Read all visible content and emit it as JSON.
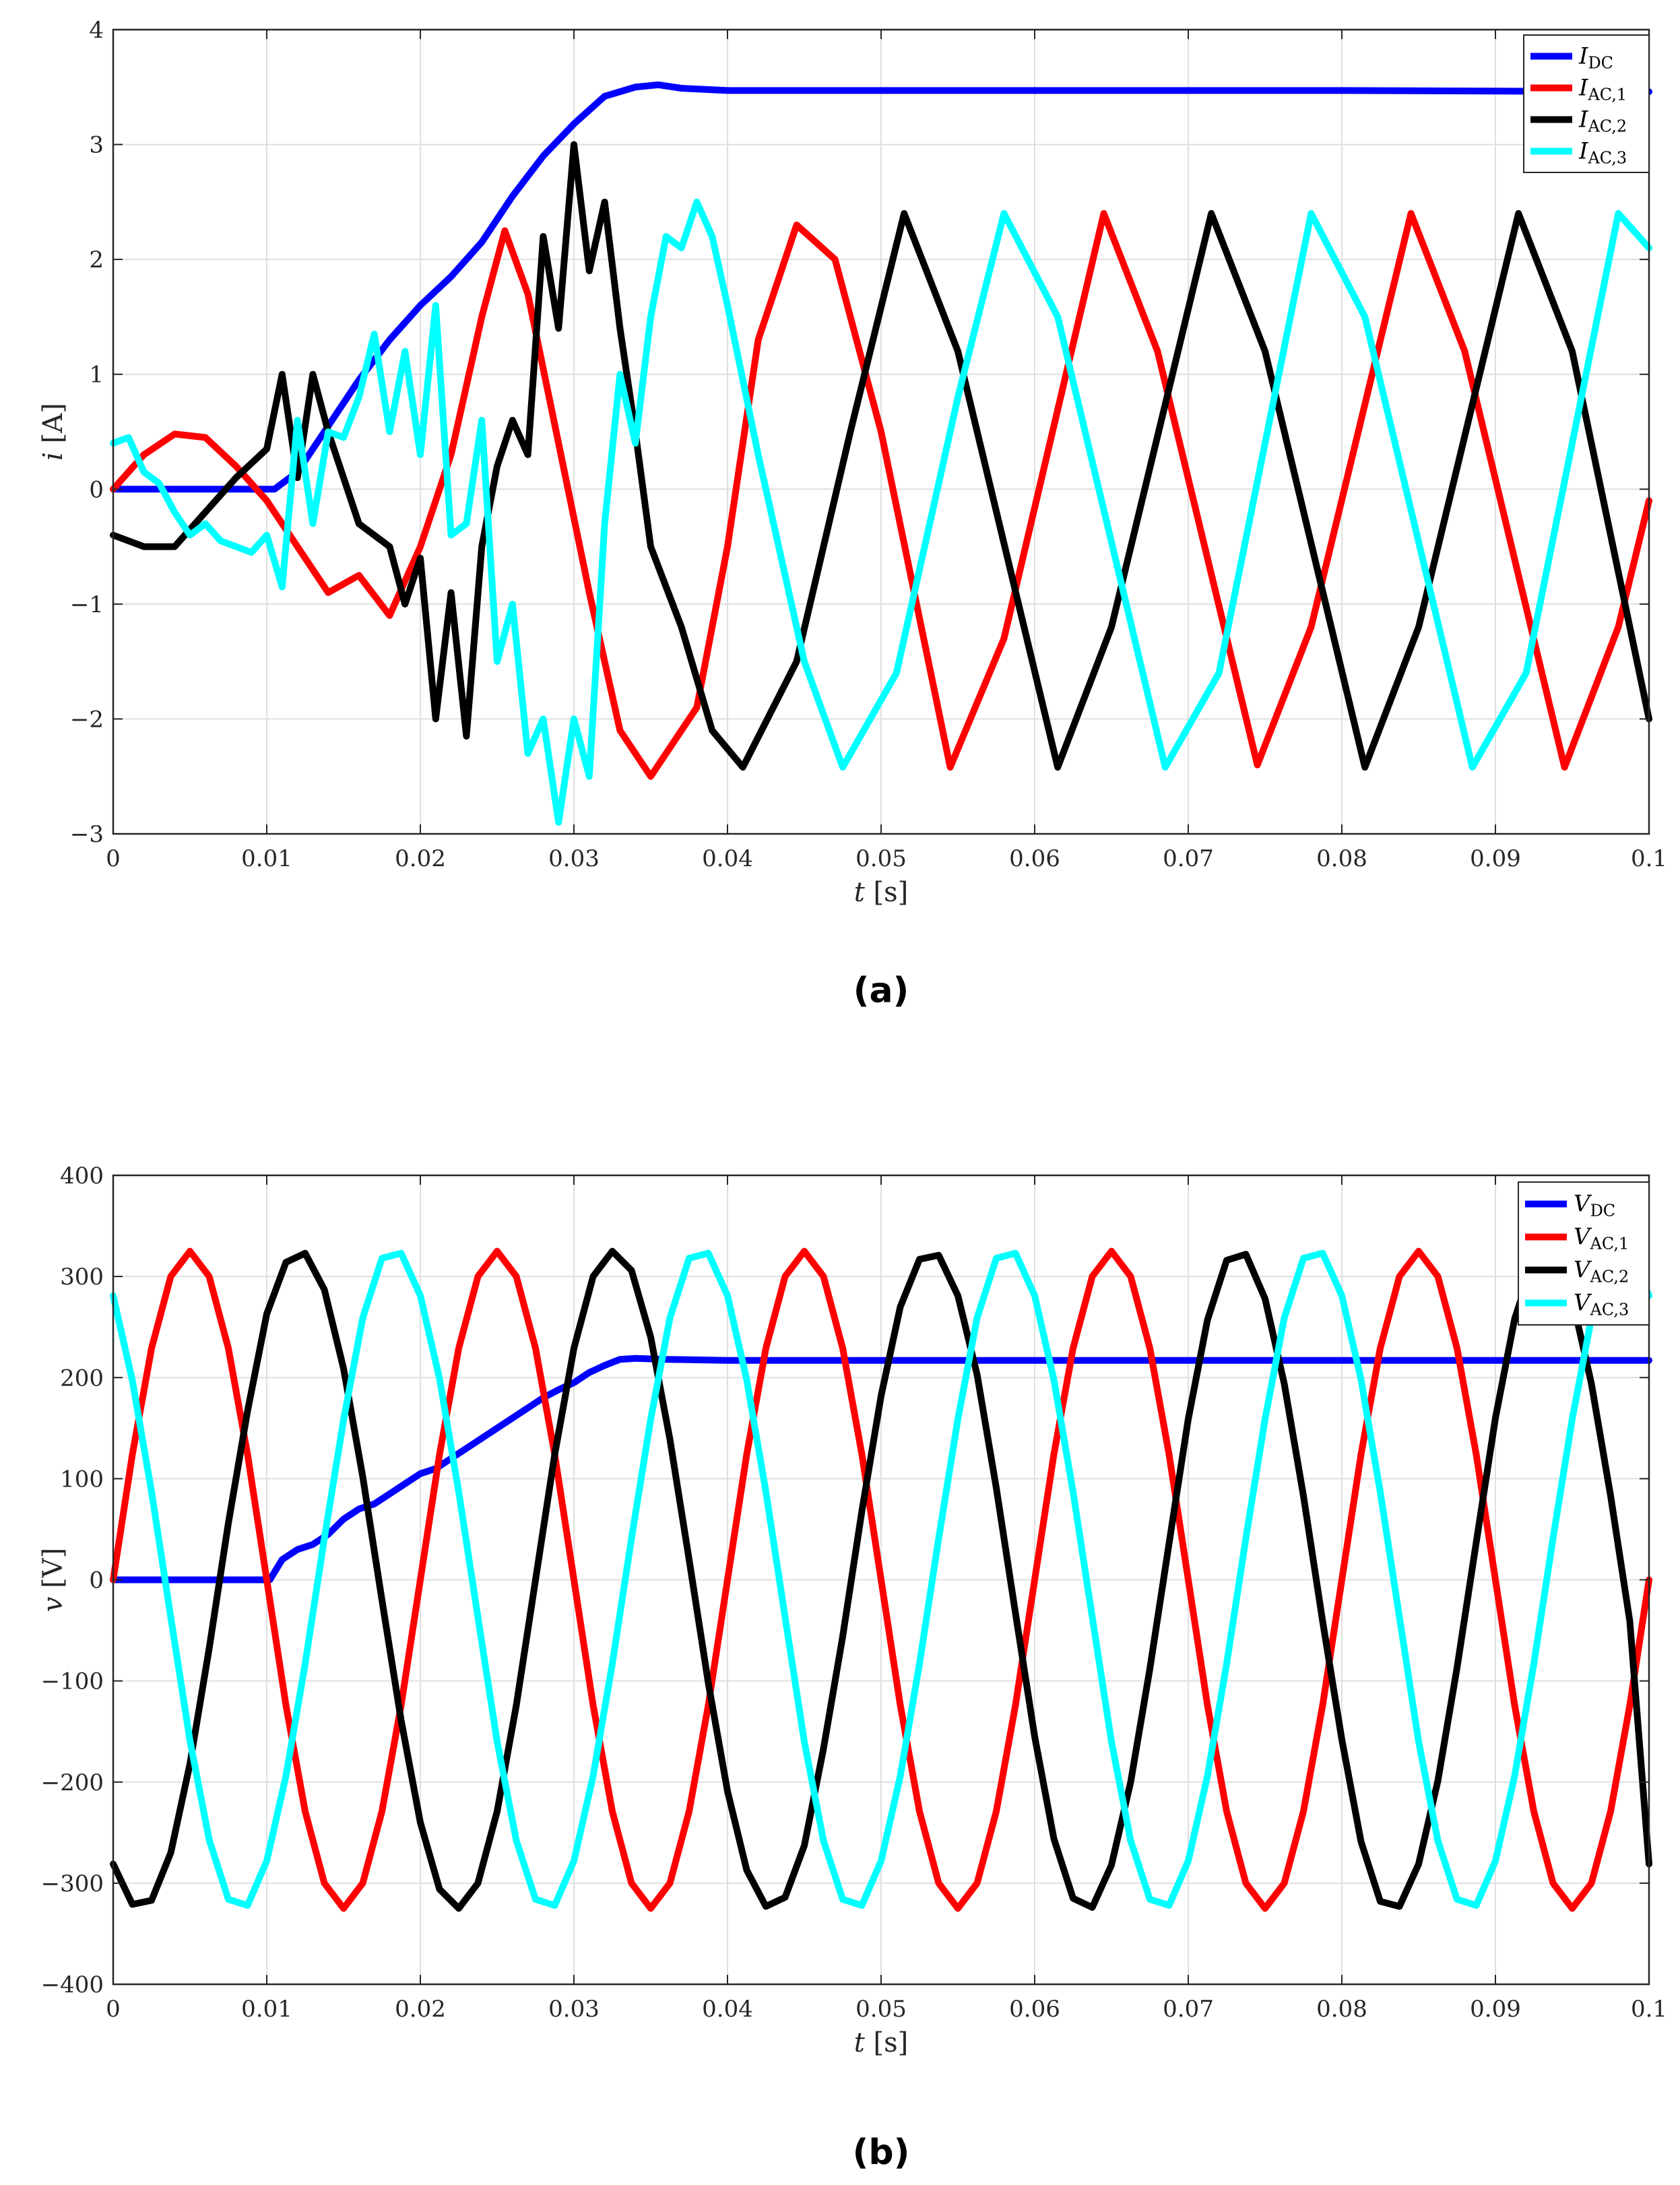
{
  "chart_data": [
    {
      "type": "line",
      "caption": "(a)",
      "xlabel_var": "t",
      "xlabel_unit": "[s]",
      "ylabel_var": "i",
      "ylabel_unit": "[A]",
      "xlim": [
        0,
        0.1
      ],
      "ylim": [
        -3,
        4
      ],
      "xticks": [
        0,
        0.01,
        0.02,
        0.03,
        0.04,
        0.05,
        0.06,
        0.07,
        0.08,
        0.09,
        0.1
      ],
      "xtick_labels": [
        "0",
        "0.01",
        "0.02",
        "0.03",
        "0.04",
        "0.05",
        "0.06",
        "0.07",
        "0.08",
        "0.09",
        "0.1"
      ],
      "yticks": [
        -3,
        -2,
        -1,
        0,
        1,
        2,
        3,
        4
      ],
      "ytick_labels": [
        "-3",
        "-2",
        "-1",
        "0",
        "1",
        "2",
        "3",
        "4"
      ],
      "grid": true,
      "legend_position": "top-right",
      "series": [
        {
          "name": "I",
          "sub": "DC",
          "color": "#0000ff",
          "x": [
            0,
            0.005,
            0.0105,
            0.012,
            0.014,
            0.016,
            0.018,
            0.02,
            0.022,
            0.024,
            0.026,
            0.028,
            0.03,
            0.032,
            0.034,
            0.0355,
            0.037,
            0.04,
            0.06,
            0.08,
            0.1
          ],
          "y": [
            0,
            0,
            0,
            0.15,
            0.55,
            0.95,
            1.3,
            1.6,
            1.85,
            2.15,
            2.55,
            2.9,
            3.18,
            3.42,
            3.5,
            3.52,
            3.49,
            3.47,
            3.47,
            3.47,
            3.46
          ]
        },
        {
          "name": "I",
          "sub": "AC,1",
          "color": "#ff0000",
          "x": [
            0,
            0.002,
            0.004,
            0.006,
            0.008,
            0.01,
            0.012,
            0.014,
            0.016,
            0.018,
            0.02,
            0.022,
            0.024,
            0.0255,
            0.027,
            0.029,
            0.031,
            0.033,
            0.035,
            0.036,
            0.038,
            0.04,
            0.042,
            0.0445,
            0.047,
            0.05,
            0.0545,
            0.058,
            0.0645,
            0.068,
            0.0745,
            0.078,
            0.0845,
            0.088,
            0.0945,
            0.098,
            0.1
          ],
          "y": [
            0,
            0.3,
            0.48,
            0.45,
            0.2,
            -0.1,
            -0.5,
            -0.9,
            -0.75,
            -1.1,
            -0.5,
            0.3,
            1.5,
            2.25,
            1.7,
            0.4,
            -0.9,
            -2.1,
            -2.5,
            -2.3,
            -1.9,
            -0.5,
            1.3,
            2.3,
            2.0,
            0.5,
            -2.42,
            -1.3,
            2.4,
            1.2,
            -2.4,
            -1.2,
            2.4,
            1.2,
            -2.42,
            -1.2,
            -0.1
          ]
        },
        {
          "name": "I",
          "sub": "AC,2",
          "color": "#000000",
          "x": [
            0,
            0.002,
            0.004,
            0.006,
            0.008,
            0.01,
            0.011,
            0.012,
            0.013,
            0.014,
            0.015,
            0.016,
            0.018,
            0.019,
            0.02,
            0.021,
            0.022,
            0.023,
            0.024,
            0.025,
            0.026,
            0.027,
            0.028,
            0.029,
            0.03,
            0.031,
            0.032,
            0.033,
            0.034,
            0.035,
            0.037,
            0.039,
            0.041,
            0.0445,
            0.048,
            0.0515,
            0.055,
            0.0615,
            0.065,
            0.0715,
            0.075,
            0.0815,
            0.085,
            0.0915,
            0.095,
            0.1
          ],
          "y": [
            -0.4,
            -0.5,
            -0.5,
            -0.2,
            0.1,
            0.35,
            1.0,
            0.1,
            1.0,
            0.5,
            0.1,
            -0.3,
            -0.5,
            -1.0,
            -0.6,
            -2.0,
            -0.9,
            -2.15,
            -0.5,
            0.2,
            0.6,
            0.3,
            2.2,
            1.4,
            3.0,
            1.9,
            2.5,
            1.4,
            0.5,
            -0.5,
            -1.2,
            -2.1,
            -2.42,
            -1.5,
            0.5,
            2.4,
            1.2,
            -2.42,
            -1.2,
            2.4,
            1.2,
            -2.42,
            -1.2,
            2.4,
            1.2,
            -2.0
          ]
        },
        {
          "name": "I",
          "sub": "AC,3",
          "color": "#00ffff",
          "x": [
            0,
            0.001,
            0.002,
            0.003,
            0.004,
            0.005,
            0.006,
            0.007,
            0.008,
            0.009,
            0.01,
            0.011,
            0.012,
            0.013,
            0.014,
            0.015,
            0.016,
            0.017,
            0.018,
            0.019,
            0.02,
            0.021,
            0.022,
            0.023,
            0.024,
            0.025,
            0.026,
            0.027,
            0.028,
            0.029,
            0.03,
            0.031,
            0.032,
            0.033,
            0.034,
            0.035,
            0.036,
            0.037,
            0.038,
            0.039,
            0.04,
            0.042,
            0.045,
            0.0475,
            0.051,
            0.055,
            0.058,
            0.0615,
            0.0685,
            0.072,
            0.078,
            0.0815,
            0.0885,
            0.092,
            0.098,
            0.1
          ],
          "y": [
            0.4,
            0.45,
            0.15,
            0.05,
            -0.2,
            -0.4,
            -0.3,
            -0.45,
            -0.5,
            -0.55,
            -0.4,
            -0.85,
            0.6,
            -0.3,
            0.5,
            0.45,
            0.8,
            1.35,
            0.5,
            1.2,
            0.3,
            1.6,
            -0.4,
            -0.3,
            0.6,
            -1.5,
            -1.0,
            -2.3,
            -2.0,
            -2.9,
            -2.0,
            -2.5,
            -0.3,
            1.0,
            0.4,
            1.5,
            2.2,
            2.1,
            2.5,
            2.2,
            1.6,
            0.3,
            -1.5,
            -2.42,
            -1.6,
            0.8,
            2.4,
            1.5,
            -2.42,
            -1.6,
            2.4,
            1.5,
            -2.42,
            -1.6,
            2.4,
            2.1
          ]
        }
      ]
    },
    {
      "type": "line",
      "caption": "(b)",
      "xlabel_var": "t",
      "xlabel_unit": "[s]",
      "ylabel_var": "v",
      "ylabel_unit": "[V]",
      "xlim": [
        0,
        0.1
      ],
      "ylim": [
        -400,
        400
      ],
      "xticks": [
        0,
        0.01,
        0.02,
        0.03,
        0.04,
        0.05,
        0.06,
        0.07,
        0.08,
        0.09,
        0.1
      ],
      "xtick_labels": [
        "0",
        "0.01",
        "0.02",
        "0.03",
        "0.04",
        "0.05",
        "0.06",
        "0.07",
        "0.08",
        "0.09",
        "0.1"
      ],
      "yticks": [
        -400,
        -300,
        -200,
        -100,
        0,
        100,
        200,
        300,
        400
      ],
      "ytick_labels": [
        "-400",
        "-300",
        "-200",
        "-100",
        "0",
        "100",
        "200",
        "300",
        "400"
      ],
      "grid": true,
      "legend_position": "top-right",
      "series": [
        {
          "name": "V",
          "sub": "DC",
          "color": "#0000ff",
          "x": [
            0,
            0.005,
            0.0102,
            0.011,
            0.012,
            0.013,
            0.014,
            0.015,
            0.016,
            0.017,
            0.018,
            0.019,
            0.02,
            0.021,
            0.022,
            0.023,
            0.024,
            0.025,
            0.026,
            0.027,
            0.028,
            0.029,
            0.03,
            0.031,
            0.032,
            0.033,
            0.034,
            0.036,
            0.04,
            0.06,
            0.08,
            0.1
          ],
          "y": [
            0,
            0,
            0,
            20,
            30,
            35,
            45,
            60,
            70,
            75,
            85,
            95,
            105,
            110,
            120,
            130,
            140,
            150,
            160,
            170,
            180,
            188,
            195,
            205,
            212,
            218,
            219,
            218,
            217,
            217,
            217,
            217
          ]
        },
        {
          "name": "V",
          "sub": "AC,1",
          "color": "#ff0000",
          "x": [
            0,
            0.00125,
            0.0025,
            0.00375,
            0.005,
            0.00625,
            0.0075,
            0.00875,
            0.01,
            0.01125,
            0.0125,
            0.01375,
            0.015,
            0.01625,
            0.0175,
            0.01875,
            0.02,
            0.02125,
            0.0225,
            0.02375,
            0.025,
            0.02625,
            0.0275,
            0.02875,
            0.03,
            0.03125,
            0.0325,
            0.03375,
            0.035,
            0.03625,
            0.0375,
            0.03875,
            0.04,
            0.04125,
            0.0425,
            0.04375,
            0.045,
            0.04625,
            0.0475,
            0.04875,
            0.05,
            0.05125,
            0.0525,
            0.05375,
            0.055,
            0.05625,
            0.0575,
            0.05875,
            0.06,
            0.06125,
            0.0625,
            0.06375,
            0.065,
            0.06625,
            0.0675,
            0.06875,
            0.07,
            0.07125,
            0.0725,
            0.07375,
            0.075,
            0.07625,
            0.0775,
            0.07875,
            0.08,
            0.08125,
            0.0825,
            0.08375,
            0.085,
            0.08625,
            0.0875,
            0.08875,
            0.09,
            0.09125,
            0.0925,
            0.09375,
            0.095,
            0.09625,
            0.0975,
            0.09875,
            0.1
          ],
          "y": [
            0,
            124,
            229,
            300,
            325,
            300,
            229,
            124,
            0,
            -124,
            -229,
            -300,
            -325,
            -300,
            -229,
            -124,
            0,
            124,
            229,
            300,
            325,
            300,
            229,
            124,
            0,
            -124,
            -229,
            -300,
            -325,
            -300,
            -229,
            -124,
            0,
            124,
            229,
            300,
            325,
            300,
            229,
            124,
            0,
            -124,
            -229,
            -300,
            -325,
            -300,
            -229,
            -124,
            0,
            124,
            229,
            300,
            325,
            300,
            229,
            124,
            0,
            -124,
            -229,
            -300,
            -325,
            -300,
            -229,
            -124,
            0,
            124,
            229,
            300,
            325,
            300,
            229,
            124,
            0,
            -124,
            -229,
            -300,
            -325,
            -300,
            -229,
            -124,
            0
          ]
        },
        {
          "name": "V",
          "sub": "AC,2",
          "color": "#000000",
          "x": [
            0,
            0.00125,
            0.0025,
            0.00375,
            0.005,
            0.00625,
            0.0075,
            0.00875,
            0.01,
            0.01125,
            0.0125,
            0.01375,
            0.015,
            0.01625,
            0.0175,
            0.01875,
            0.02,
            0.02125,
            0.0225,
            0.02375,
            0.025,
            0.02625,
            0.0275,
            0.02875,
            0.03,
            0.03125,
            0.0325,
            0.03375,
            0.035,
            0.03625,
            0.0375,
            0.03875,
            0.04,
            0.04125,
            0.0425,
            0.04375,
            0.045,
            0.04625,
            0.0475,
            0.04875,
            0.05,
            0.05125,
            0.0525,
            0.05375,
            0.055,
            0.05625,
            0.0575,
            0.05875,
            0.06,
            0.06125,
            0.0625,
            0.06375,
            0.065,
            0.06625,
            0.0675,
            0.06875,
            0.07,
            0.07125,
            0.0725,
            0.07375,
            0.075,
            0.07625,
            0.0775,
            0.07875,
            0.08,
            0.08125,
            0.0825,
            0.08375,
            0.085,
            0.08625,
            0.0875,
            0.08875,
            0.09,
            0.09125,
            0.0925,
            0.09375,
            0.095,
            0.09625,
            0.0975,
            0.09875,
            0.1
          ],
          "y": [
            -281,
            -321,
            -317,
            -270,
            -182,
            -68,
            56,
            167,
            263,
            314,
            323,
            287,
            209,
            102,
            -20,
            -139,
            -240,
            -306,
            -325,
            -300,
            -229,
            -124,
            0,
            124,
            229,
            300,
            325,
            306,
            240,
            139,
            20,
            -102,
            -209,
            -287,
            -323,
            -314,
            -263,
            -167,
            -56,
            68,
            182,
            270,
            317,
            321,
            281,
            203,
            91,
            -33,
            -155,
            -256,
            -315,
            -324,
            -282,
            -200,
            -88,
            36,
            159,
            257,
            316,
            322,
            278,
            194,
            83,
            -41,
            -158,
            -259,
            -318,
            -323,
            -281,
            -199,
            -87,
            37,
            160,
            258,
            316,
            322,
            278,
            194,
            83,
            -41,
            -281
          ]
        },
        {
          "name": "V",
          "sub": "AC,3",
          "color": "#00ffff",
          "x": [
            0,
            0.00125,
            0.0025,
            0.00375,
            0.005,
            0.00625,
            0.0075,
            0.00875,
            0.01,
            0.01125,
            0.0125,
            0.01375,
            0.015,
            0.01625,
            0.0175,
            0.01875,
            0.02,
            0.02125,
            0.0225,
            0.02375,
            0.025,
            0.02625,
            0.0275,
            0.02875,
            0.03,
            0.03125,
            0.0325,
            0.03375,
            0.035,
            0.03625,
            0.0375,
            0.03875,
            0.04,
            0.04125,
            0.0425,
            0.04375,
            0.045,
            0.04625,
            0.0475,
            0.04875,
            0.05,
            0.05125,
            0.0525,
            0.05375,
            0.055,
            0.05625,
            0.0575,
            0.05875,
            0.06,
            0.06125,
            0.0625,
            0.06375,
            0.065,
            0.06625,
            0.0675,
            0.06875,
            0.07,
            0.07125,
            0.0725,
            0.07375,
            0.075,
            0.07625,
            0.0775,
            0.07875,
            0.08,
            0.08125,
            0.0825,
            0.08375,
            0.085,
            0.08625,
            0.0875,
            0.08875,
            0.09,
            0.09125,
            0.0925,
            0.09375,
            0.095,
            0.09625,
            0.0975,
            0.09875,
            0.1
          ],
          "y": [
            281,
            197,
            87,
            -37,
            -159,
            -257,
            -316,
            -322,
            -278,
            -194,
            -83,
            41,
            158,
            259,
            318,
            323,
            281,
            199,
            87,
            -37,
            -160,
            -258,
            -316,
            -322,
            -278,
            -194,
            -83,
            41,
            159,
            259,
            318,
            323,
            281,
            198,
            87,
            -37,
            -160,
            -258,
            -316,
            -322,
            -278,
            -194,
            -83,
            41,
            159,
            259,
            318,
            323,
            281,
            198,
            87,
            -37,
            -160,
            -258,
            -316,
            -322,
            -278,
            -194,
            -83,
            41,
            159,
            259,
            318,
            323,
            281,
            198,
            87,
            -37,
            -160,
            -258,
            -316,
            -322,
            -278,
            -194,
            -83,
            41,
            159,
            259,
            318,
            323,
            281
          ]
        }
      ]
    }
  ]
}
